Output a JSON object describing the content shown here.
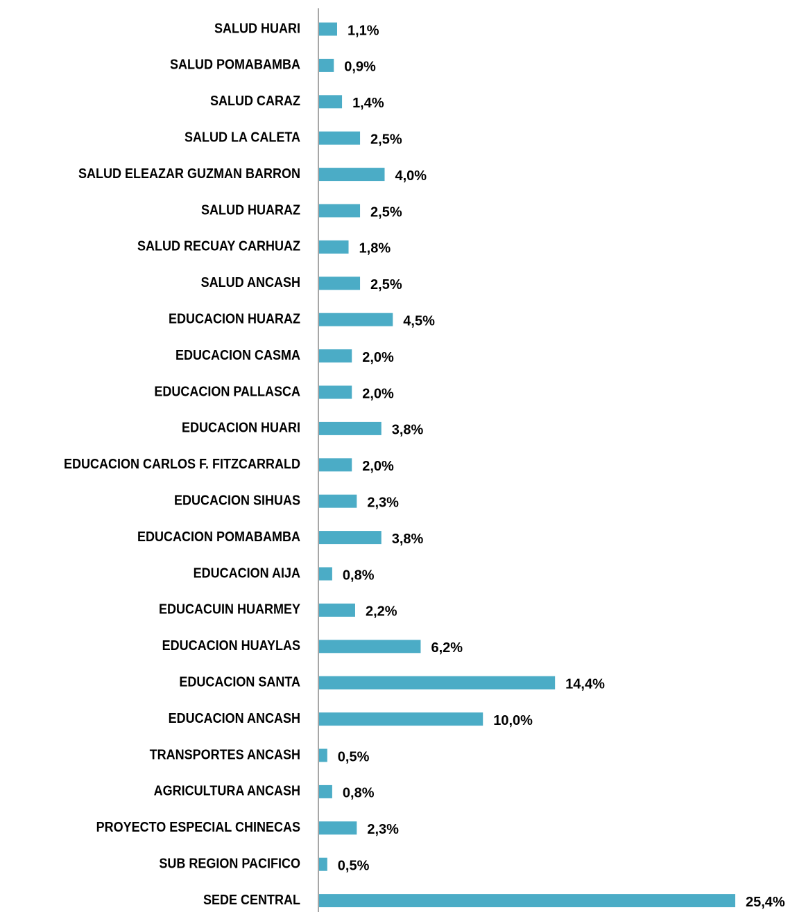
{
  "chart_data": {
    "type": "bar",
    "orientation": "horizontal",
    "color": "#4bacc6",
    "categories": [
      "SALUD HUARI",
      "SALUD POMABAMBA",
      "SALUD CARAZ",
      "SALUD LA CALETA",
      "SALUD ELEAZAR GUZMAN BARRON",
      "SALUD HUARAZ",
      "SALUD RECUAY CARHUAZ",
      "SALUD ANCASH",
      "EDUCACION HUARAZ",
      "EDUCACION CASMA",
      "EDUCACION PALLASCA",
      "EDUCACION HUARI",
      "EDUCACION CARLOS F. FITZCARRALD",
      "EDUCACION SIHUAS",
      "EDUCACION POMABAMBA",
      "EDUCACION AIJA",
      "EDUCACUIN HUARMEY",
      "EDUCACION HUAYLAS",
      "EDUCACION SANTA",
      "EDUCACION ANCASH",
      "TRANSPORTES ANCASH",
      "AGRICULTURA ANCASH",
      "PROYECTO ESPECIAL CHINECAS",
      "SUB REGION PACIFICO",
      "SEDE CENTRAL"
    ],
    "values": [
      1.1,
      0.9,
      1.4,
      2.5,
      4.0,
      2.5,
      1.8,
      2.5,
      4.5,
      2.0,
      2.0,
      3.8,
      2.0,
      2.3,
      3.8,
      0.8,
      2.2,
      6.2,
      14.4,
      10.0,
      0.5,
      0.8,
      2.3,
      0.5,
      25.4
    ],
    "value_labels": [
      "1,1%",
      "0,9%",
      "1,4%",
      "2,5%",
      "4,0%",
      "2,5%",
      "1,8%",
      "2,5%",
      "4,5%",
      "2,0%",
      "2,0%",
      "3,8%",
      "2,0%",
      "2,3%",
      "3,8%",
      "0,8%",
      "2,2%",
      "6,2%",
      "14,4%",
      "10,0%",
      "0,5%",
      "0,8%",
      "2,3%",
      "0,5%",
      "25,4%"
    ]
  }
}
